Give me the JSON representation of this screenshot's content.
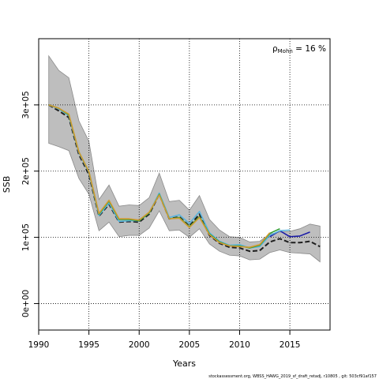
{
  "chart_data": {
    "type": "line",
    "xlabel": "Years",
    "ylabel": "SSB",
    "xlim": [
      1990,
      2019
    ],
    "ylim": [
      -40000,
      400000
    ],
    "x_ticks": [
      1990,
      1995,
      2000,
      2005,
      2010,
      2015
    ],
    "y_ticks": [
      0,
      100000,
      200000,
      300000
    ],
    "y_tick_labels": [
      "0e+00",
      "1e+05",
      "2e+05",
      "3e+05"
    ],
    "grid": true,
    "annotation": {
      "rho_symbol": "ρ",
      "rho_subscript": "Mohn",
      "text": " = 16 %"
    },
    "footer": "stockassessment.org, WBSS_HAWG_2019_sf_draft_retadj, r10805 , git: 503cf91af157",
    "band": {
      "color": "#bebebe",
      "x": [
        1991,
        1992,
        1993,
        1994,
        1995,
        1996,
        1997,
        1998,
        1999,
        2000,
        2001,
        2002,
        2003,
        2004,
        2005,
        2006,
        2007,
        2008,
        2009,
        2010,
        2011,
        2012,
        2013,
        2014,
        2015,
        2016,
        2017,
        2018
      ],
      "upper": [
        374000,
        352000,
        341000,
        276000,
        245000,
        157000,
        179000,
        147000,
        149000,
        148000,
        160000,
        197000,
        154000,
        156000,
        141000,
        163000,
        127000,
        111000,
        101000,
        100000,
        93000,
        94000,
        105000,
        108000,
        109000,
        113000,
        120000,
        117000
      ],
      "lower": [
        242000,
        237000,
        231000,
        189000,
        165000,
        110000,
        123000,
        101000,
        103000,
        103000,
        114000,
        140000,
        110000,
        111000,
        100000,
        113000,
        90000,
        79000,
        73000,
        72000,
        66000,
        67000,
        77000,
        81000,
        77000,
        76000,
        75000,
        63000
      ]
    },
    "series": [
      {
        "color": "#1f1f1f",
        "dash": "6,3",
        "x": [
          1991,
          1992,
          1993,
          1994,
          1995,
          1996,
          1997,
          1998,
          1999,
          2000,
          2001,
          2002,
          2003,
          2004,
          2005,
          2006,
          2007,
          2008,
          2009,
          2010,
          2011,
          2012,
          2013,
          2014,
          2015,
          2016,
          2017,
          2018
        ],
        "values": [
          300000,
          291000,
          281000,
          225000,
          195000,
          132000,
          150000,
          123000,
          124000,
          123000,
          135000,
          165000,
          128000,
          131000,
          117000,
          135000,
          103000,
          91000,
          85000,
          84000,
          79000,
          80000,
          93000,
          98000,
          92000,
          92000,
          94000,
          86000
        ]
      },
      {
        "color": "#1c1ca8",
        "dash": "",
        "x": [
          2013,
          2014,
          2015,
          2016,
          2017
        ],
        "values": [
          101000,
          110000,
          101000,
          102000,
          108000
        ]
      },
      {
        "color": "#5ab4dc",
        "dash": "",
        "x": [
          1991,
          1992,
          1993,
          1994,
          1995,
          1996,
          1997,
          1998,
          1999,
          2000,
          2001,
          2002,
          2003,
          2004,
          2005,
          2006,
          2007,
          2008,
          2009,
          2010,
          2011,
          2012,
          2013,
          2014,
          2015
        ],
        "values": [
          300000,
          294000,
          284000,
          228000,
          198000,
          133000,
          152000,
          124000,
          125000,
          125000,
          137000,
          167000,
          130000,
          134000,
          121000,
          139000,
          107000,
          94000,
          88000,
          89000,
          84000,
          86000,
          103000,
          110000,
          111000
        ]
      },
      {
        "color": "#2e9e2e",
        "dash": "",
        "x": [
          1991,
          1992,
          1993,
          1994,
          1995,
          1996,
          1997,
          1998,
          1999,
          2000,
          2001,
          2002,
          2003,
          2004,
          2005,
          2006,
          2007,
          2008,
          2009,
          2010,
          2011,
          2012,
          2013,
          2014
        ],
        "values": [
          300000,
          295000,
          285000,
          229000,
          199000,
          135000,
          155000,
          127000,
          127000,
          125000,
          137000,
          165000,
          128000,
          130000,
          116000,
          131000,
          105000,
          93000,
          87000,
          87000,
          84000,
          88000,
          106000,
          113000
        ]
      },
      {
        "color": "#d09a30",
        "dash": "",
        "x": [
          1991,
          1992,
          1993,
          1994,
          1995,
          1996,
          1997,
          1998,
          1999,
          2000,
          2001,
          2002,
          2003,
          2004,
          2005,
          2006,
          2007,
          2008,
          2009,
          2010,
          2011,
          2012,
          2013
        ],
        "values": [
          300000,
          295000,
          286000,
          229000,
          199000,
          136000,
          156000,
          128000,
          128000,
          126000,
          138000,
          164000,
          128000,
          129000,
          115000,
          130000,
          104000,
          92000,
          87000,
          86000,
          85000,
          89000,
          107000
        ]
      }
    ]
  }
}
